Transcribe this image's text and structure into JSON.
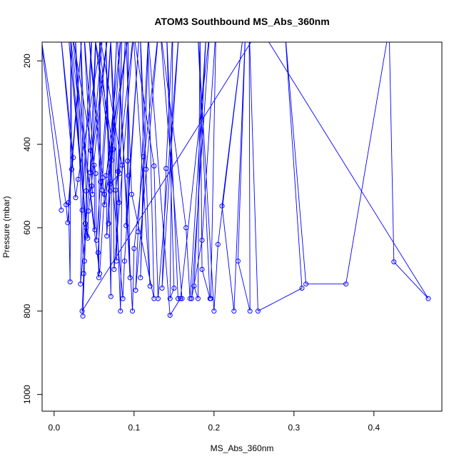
{
  "chart_data": {
    "type": "line",
    "title": "ATOM3 Southbound MS_Abs_360nm",
    "xlabel": "MS_Abs_360nm",
    "ylabel": "Pressure (mbar)",
    "xlim": [
      -0.015,
      0.485
    ],
    "ylim": [
      1040,
      155
    ],
    "y_reversed": true,
    "x_ticks": [
      "0.0",
      "0.1",
      "0.2",
      "0.3",
      "0.4"
    ],
    "x_tick_values": [
      0,
      0.1,
      0.2,
      0.3,
      0.4
    ],
    "y_ticks": [
      "200",
      "400",
      "600",
      "800",
      "1000"
    ],
    "y_tick_values": [
      200,
      400,
      600,
      800,
      1000
    ],
    "grid": false,
    "series_color": "#0000ff",
    "series": [
      {
        "marker": "open-circle",
        "x": [
          0.009,
          0.015,
          0.017,
          0.018,
          0.02,
          0.022,
          0.024,
          0.027,
          0.03,
          0.033,
          0.035,
          0.036,
          0.038,
          0.04,
          0.04,
          0.042,
          0.043,
          0.045,
          0.046,
          0.047,
          0.048,
          0.05,
          0.051,
          0.052,
          0.053,
          0.055,
          0.056,
          0.058,
          0.06,
          0.061,
          0.063,
          0.065,
          0.066,
          0.068,
          0.07,
          0.071,
          0.072,
          0.074,
          0.075,
          0.077,
          0.078,
          0.08,
          0.081,
          0.083,
          0.085,
          0.086,
          0.088,
          0.09,
          0.092,
          0.093,
          0.095,
          0.098,
          0.1,
          0.102,
          0.105,
          0.108,
          0.112,
          0.115,
          0.12,
          0.125,
          0.13,
          0.135,
          0.14,
          0.145,
          0.15,
          0.155,
          0.16,
          0.165,
          0.17,
          0.175,
          0.18,
          0.185,
          0.195,
          0.2,
          0.205,
          0.21,
          0.225,
          0.23,
          0.245,
          0.255,
          0.31,
          0.315,
          0.365,
          0.425,
          0.468,
          0.035,
          0.037,
          0.039,
          0.041,
          0.057,
          0.063,
          0.07,
          0.082,
          0.097,
          0.125,
          0.145,
          0.158,
          0.172,
          0.185,
          0.196
        ],
        "y": [
          558,
          545,
          588,
          540,
          730,
          460,
          432,
          528,
          484,
          735,
          558,
          812,
          680,
          512,
          600,
          625,
          560,
          468,
          415,
          500,
          520,
          450,
          605,
          470,
          630,
          660,
          720,
          490,
          510,
          480,
          545,
          475,
          620,
          590,
          512,
          765,
          438,
          412,
          700,
          510,
          680,
          465,
          540,
          800,
          450,
          770,
          680,
          595,
          440,
          475,
          720,
          800,
          650,
          750,
          610,
          720,
          430,
          460,
          740,
          452,
          770,
          745,
          458,
          770,
          745,
          770,
          770,
          600,
          770,
          740,
          770,
          700,
          770,
          800,
          640,
          548,
          800,
          680,
          800,
          800,
          745,
          735,
          735,
          682,
          770,
          800,
          710,
          590,
          620,
          710,
          520,
          495,
          470,
          520,
          770,
          810,
          770,
          770,
          630,
          770
        ]
      }
    ]
  }
}
